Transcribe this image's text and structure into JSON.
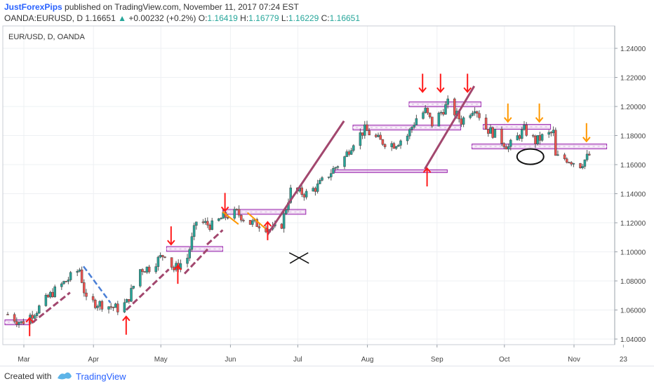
{
  "header": {
    "username": "JustForexPips",
    "published_text": "published on TradingView.com, November 11, 2017 07:24 EST",
    "symbol": "OANDA:EURUSD, D",
    "last_price": "1.16651",
    "change_arrow": "▲",
    "change": "+0.00232 (+0.2%)",
    "o_label": "O:",
    "o_value": "1.16419",
    "h_label": "H:",
    "h_value": "1.16779",
    "l_label": "L:",
    "l_value": "1.16229",
    "c_label": "C:",
    "c_value": "1.16651"
  },
  "chart_title": "EUR/USD, D, OANDA",
  "footer": {
    "created_with": "Created with",
    "brand": "TradingView"
  },
  "colors": {
    "bull": "#26a69a",
    "bear": "#ef5350",
    "zone": "#9c27b0",
    "trend": "#a2476e",
    "arrow_red": "#ff1a1a",
    "arrow_orange": "#ff9800",
    "blue_dash": "#4a7fd6"
  },
  "chart_data": {
    "type": "candlestick",
    "title": "EUR/USD, D, OANDA",
    "x_ticks": [
      "Mar",
      "Apr",
      "May",
      "Jun",
      "Jul",
      "Aug",
      "Sep",
      "Oct",
      "Nov",
      "23"
    ],
    "y_ticks": [
      "1.24000",
      "1.22000",
      "1.20000",
      "1.18000",
      "1.16000",
      "1.14000",
      "1.12000",
      "1.10000",
      "1.08000",
      "1.06000",
      "1.04000"
    ],
    "ylim": [
      1.03,
      1.25
    ],
    "close_path": [
      [
        "2017-02-24",
        1.057
      ],
      [
        "2017-03-02",
        1.051
      ],
      [
        "2017-03-09",
        1.06
      ],
      [
        "2017-03-16",
        1.072
      ],
      [
        "2017-03-22",
        1.08
      ],
      [
        "2017-03-28",
        1.088
      ],
      [
        "2017-03-31",
        1.066
      ],
      [
        "2017-04-07",
        1.064
      ],
      [
        "2017-04-14",
        1.061
      ],
      [
        "2017-04-18",
        1.065
      ],
      [
        "2017-04-24",
        1.088
      ],
      [
        "2017-04-28",
        1.089
      ],
      [
        "2017-05-05",
        1.099
      ],
      [
        "2017-05-09",
        1.088
      ],
      [
        "2017-05-15",
        1.096
      ],
      [
        "2017-05-19",
        1.121
      ],
      [
        "2017-05-26",
        1.118
      ],
      [
        "2017-05-31",
        1.124
      ],
      [
        "2017-06-06",
        1.127
      ],
      [
        "2017-06-12",
        1.12
      ],
      [
        "2017-06-16",
        1.119
      ],
      [
        "2017-06-22",
        1.115
      ],
      [
        "2017-06-26",
        1.119
      ],
      [
        "2017-06-30",
        1.142
      ],
      [
        "2017-07-07",
        1.14
      ],
      [
        "2017-07-12",
        1.145
      ],
      [
        "2017-07-18",
        1.155
      ],
      [
        "2017-07-24",
        1.165
      ],
      [
        "2017-07-28",
        1.176
      ],
      [
        "2017-08-02",
        1.184
      ],
      [
        "2017-08-09",
        1.176
      ],
      [
        "2017-08-15",
        1.174
      ],
      [
        "2017-08-21",
        1.18
      ],
      [
        "2017-08-25",
        1.192
      ],
      [
        "2017-08-29",
        1.197
      ],
      [
        "2017-09-01",
        1.188
      ],
      [
        "2017-09-08",
        1.202
      ],
      [
        "2017-09-14",
        1.19
      ],
      [
        "2017-09-20",
        1.2
      ],
      [
        "2017-09-25",
        1.185
      ],
      [
        "2017-09-29",
        1.181
      ],
      [
        "2017-10-05",
        1.172
      ],
      [
        "2017-10-12",
        1.184
      ],
      [
        "2017-10-17",
        1.176
      ],
      [
        "2017-10-20",
        1.179
      ],
      [
        "2017-10-25",
        1.182
      ],
      [
        "2017-10-26",
        1.165
      ],
      [
        "2017-10-31",
        1.164
      ],
      [
        "2017-11-06",
        1.16
      ],
      [
        "2017-11-10",
        1.1665
      ]
    ],
    "annotations": {
      "support_resistance_zones": [
        {
          "from": "2017-02-24",
          "to": "2017-03-07",
          "level": 1.0515
        },
        {
          "from": "2017-05-07",
          "to": "2017-06-01",
          "level": 1.102
        },
        {
          "from": "2017-06-01",
          "to": "2017-07-08",
          "level": 1.1275
        },
        {
          "from": "2017-07-29",
          "to": "2017-09-15",
          "level": 1.1855
        },
        {
          "from": "2017-08-23",
          "to": "2017-09-24",
          "level": 1.2015
        },
        {
          "from": "2017-09-25",
          "to": "2017-10-25",
          "level": 1.186
        },
        {
          "from": "2017-09-20",
          "to": "2017-11-19",
          "level": 1.1725
        }
      ],
      "horizontal_lines": [
        {
          "from": "2017-07-21",
          "to": "2017-09-09",
          "level": 1.1555
        }
      ],
      "trend_lines": [
        {
          "from": [
            "2017-03-08",
            1.051
          ],
          "to": [
            "2017-03-25",
            1.072
          ]
        },
        {
          "from": [
            "2017-04-19",
            1.06
          ],
          "to": [
            "2017-05-08",
            1.088
          ]
        },
        {
          "from": [
            "2017-05-15",
            1.085
          ],
          "to": [
            "2017-05-26",
            1.103
          ]
        },
        {
          "from": [
            "2017-05-25",
            1.105
          ],
          "to": [
            "2017-06-01",
            1.115
          ]
        },
        {
          "from": [
            "2017-06-21",
            1.112
          ],
          "to": [
            "2017-07-25",
            1.19
          ]
        },
        {
          "from": [
            "2017-08-30",
            1.157
          ],
          "to": [
            "2017-09-21",
            1.214
          ]
        }
      ],
      "blue_dashed_line": {
        "from": [
          "2017-03-31",
          1.09
        ],
        "to": [
          "2017-04-12",
          1.065
        ]
      },
      "orange_lines": [
        {
          "from": [
            "2017-06-01",
            1.1275
          ],
          "to": [
            "2017-06-08",
            1.119
          ]
        },
        {
          "from": [
            "2017-06-12",
            1.127
          ],
          "to": [
            "2017-06-20",
            1.116
          ]
        }
      ],
      "up_arrows": [
        {
          "date": "2017-03-07",
          "level": 1.042,
          "color": "red"
        },
        {
          "date": "2017-04-19",
          "level": 1.043,
          "color": "red"
        },
        {
          "date": "2017-05-12",
          "level": 1.078,
          "color": "red"
        },
        {
          "date": "2017-06-21",
          "level": 1.108,
          "color": "red"
        },
        {
          "date": "2017-08-31",
          "level": 1.145,
          "color": "red"
        }
      ],
      "down_arrows": [
        {
          "date": "2017-05-09",
          "level": 1.105,
          "color": "red"
        },
        {
          "date": "2017-06-02",
          "level": 1.128,
          "color": "red"
        },
        {
          "date": "2017-08-29",
          "level": 1.21,
          "color": "red"
        },
        {
          "date": "2017-09-06",
          "level": 1.21,
          "color": "red"
        },
        {
          "date": "2017-09-18",
          "level": 1.21,
          "color": "red"
        },
        {
          "date": "2017-10-06",
          "level": 1.1895,
          "color": "orange"
        },
        {
          "date": "2017-10-20",
          "level": 1.1895,
          "color": "orange"
        },
        {
          "date": "2017-11-10",
          "level": 1.176,
          "color": "orange"
        }
      ],
      "circle": {
        "center": [
          "2017-10-16",
          1.1655
        ]
      },
      "cross": {
        "center": [
          "2017-07-05",
          1.096
        ]
      }
    }
  }
}
